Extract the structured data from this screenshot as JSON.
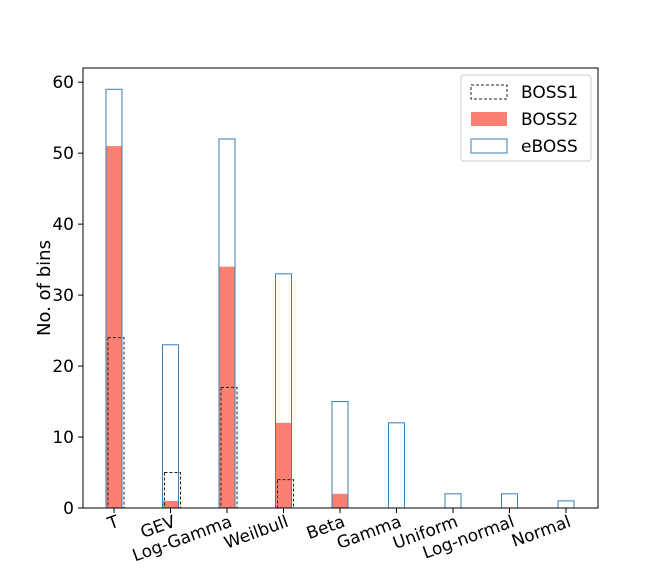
{
  "chart_data": {
    "type": "bar",
    "title": "",
    "xlabel": "",
    "ylabel": "No. of bins",
    "ylim": [
      0,
      62
    ],
    "yticks": [
      0,
      10,
      20,
      30,
      40,
      50,
      60
    ],
    "categories": [
      "T",
      "GEV",
      "Log-Gamma",
      "Weilbull",
      "Beta",
      "Gamma",
      "Uniform",
      "Log-normal",
      "Normal"
    ],
    "xtick_rotation_deg": 20,
    "grid": false,
    "legend_position": "top-right",
    "series": [
      {
        "name": "BOSS1",
        "style": "step-dashed",
        "color": "#222222",
        "values": [
          24,
          5,
          17,
          4,
          0,
          0,
          0,
          0,
          0
        ]
      },
      {
        "name": "BOSS2",
        "style": "filled",
        "color": "#fa8072",
        "values": [
          51,
          1,
          34,
          12,
          2,
          0,
          0,
          0,
          0
        ]
      },
      {
        "name": "eBOSS",
        "style": "step-outline",
        "color": "#3a7fb5",
        "values": [
          59,
          23,
          52,
          33,
          15,
          12,
          2,
          2,
          1
        ]
      }
    ]
  }
}
